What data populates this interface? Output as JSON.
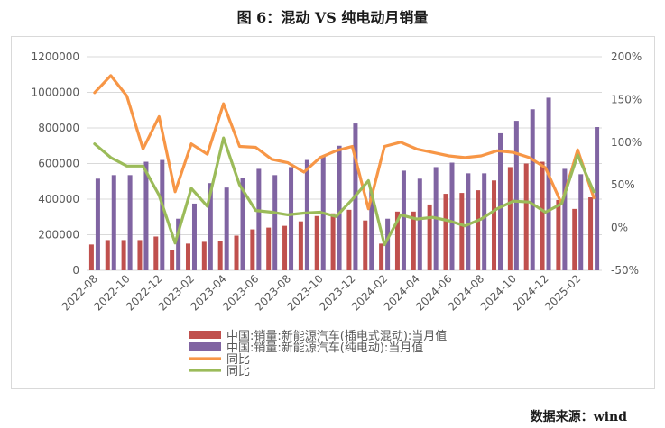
{
  "title": "图 6：混动 VS 纯电动月销量",
  "source": "数据来源：wind",
  "colors": {
    "phev_bar": "#c0504d",
    "bev_bar": "#8064a2",
    "line1": "#f79646",
    "line2": "#9bbb59",
    "grid": "#d9d9d9",
    "axis_text": "#595959"
  },
  "chart_data": {
    "type": "bar",
    "x": [
      "2022-08",
      "2022-09",
      "2022-10",
      "2022-11",
      "2022-12",
      "2023-01",
      "2023-02",
      "2023-03",
      "2023-04",
      "2023-05",
      "2023-06",
      "2023-07",
      "2023-08",
      "2023-09",
      "2023-10",
      "2023-11",
      "2023-12",
      "2024-01",
      "2024-02",
      "2024-03",
      "2024-04",
      "2024-05",
      "2024-06",
      "2024-07",
      "2024-08",
      "2024-09",
      "2024-10",
      "2024-11",
      "2024-12",
      "2025-01",
      "2025-02",
      "2025-03"
    ],
    "x_tick_labels": [
      "2022-08",
      "2022-10",
      "2022-12",
      "2023-02",
      "2023-04",
      "2023-06",
      "2023-08",
      "2023-10",
      "2023-12",
      "2024-02",
      "2024-04",
      "2024-06",
      "2024-08",
      "2024-10",
      "2024-12",
      "2025-02"
    ],
    "y_left": {
      "min": 0,
      "max": 1200000,
      "step": 200000,
      "tick_labels": [
        "0",
        "200000",
        "400000",
        "600000",
        "800000",
        "1000000",
        "1200000"
      ]
    },
    "y_right": {
      "min": -0.5,
      "max": 2.0,
      "step": 0.5,
      "tick_labels": [
        "-50%",
        "0%",
        "50%",
        "100%",
        "150%",
        "200%"
      ]
    },
    "grid": true,
    "legend_position": "bottom",
    "series": [
      {
        "name": "中国:销量:新能源汽车(插电式混动):当月值",
        "kind": "bar",
        "axis": "left",
        "values": [
          145000,
          170000,
          170000,
          170000,
          190000,
          115000,
          150000,
          160000,
          165000,
          195000,
          230000,
          240000,
          250000,
          275000,
          305000,
          320000,
          340000,
          280000,
          150000,
          330000,
          330000,
          370000,
          430000,
          435000,
          450000,
          505000,
          580000,
          600000,
          610000,
          395000,
          345000,
          410000
        ]
      },
      {
        "name": "中国:销量:新能源汽车(纯电动):当月值",
        "kind": "bar",
        "axis": "left",
        "values": [
          515000,
          535000,
          535000,
          610000,
          620000,
          290000,
          375000,
          490000,
          465000,
          520000,
          570000,
          535000,
          580000,
          620000,
          640000,
          700000,
          825000,
          450000,
          290000,
          560000,
          515000,
          580000,
          605000,
          545000,
          545000,
          770000,
          840000,
          905000,
          970000,
          570000,
          540000,
          805000
        ]
      },
      {
        "name": "同比",
        "kind": "line",
        "axis": "right",
        "values": [
          1.58,
          1.78,
          1.54,
          0.92,
          1.3,
          0.42,
          0.98,
          0.86,
          1.45,
          0.95,
          0.94,
          0.8,
          0.76,
          0.65,
          0.82,
          0.9,
          0.95,
          0.22,
          0.95,
          1.0,
          0.92,
          0.88,
          0.84,
          0.82,
          0.84,
          0.9,
          0.88,
          0.82,
          0.7,
          0.28,
          0.91,
          0.35
        ]
      },
      {
        "name": "同比",
        "kind": "line",
        "axis": "right",
        "values": [
          0.98,
          0.82,
          0.72,
          0.72,
          0.38,
          -0.18,
          0.46,
          0.25,
          1.05,
          0.5,
          0.2,
          0.18,
          0.15,
          0.17,
          0.18,
          0.13,
          0.33,
          0.55,
          -0.2,
          0.15,
          0.1,
          0.12,
          0.08,
          0.02,
          0.1,
          0.22,
          0.31,
          0.3,
          0.18,
          0.28,
          0.85,
          0.42
        ]
      }
    ]
  }
}
